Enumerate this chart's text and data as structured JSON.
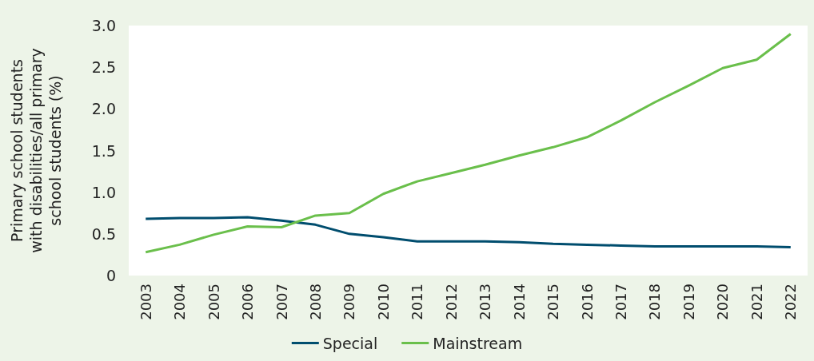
{
  "chart_data": {
    "type": "line",
    "ylabel": "Primary school students\nwith disabilities/all primary\nschool students (%)",
    "categories": [
      "2003",
      "2004",
      "2005",
      "2006",
      "2007",
      "2008",
      "2009",
      "2010",
      "2011",
      "2012",
      "2013",
      "2014",
      "2015",
      "2016",
      "2017",
      "2018",
      "2019",
      "2020",
      "2021",
      "2022"
    ],
    "series": [
      {
        "name": "Special",
        "color": "#004d6e",
        "values": [
          0.68,
          0.69,
          0.69,
          0.7,
          0.66,
          0.61,
          0.5,
          0.46,
          0.41,
          0.41,
          0.41,
          0.4,
          0.38,
          0.37,
          0.36,
          0.35,
          0.35,
          0.35,
          0.35,
          0.34
        ]
      },
      {
        "name": "Mainstream",
        "color": "#6abf4b",
        "values": [
          0.28,
          0.37,
          0.49,
          0.59,
          0.58,
          0.72,
          0.75,
          0.98,
          1.13,
          1.23,
          1.33,
          1.44,
          1.54,
          1.66,
          1.86,
          2.08,
          2.28,
          2.49,
          2.59,
          2.9
        ]
      }
    ],
    "ylim": [
      0,
      3
    ],
    "yticks": [
      {
        "value": 0,
        "label": "0"
      },
      {
        "value": 0.5,
        "label": "0.5"
      },
      {
        "value": 1,
        "label": "1.0"
      },
      {
        "value": 1.5,
        "label": "1.5"
      },
      {
        "value": 2,
        "label": "2.0"
      },
      {
        "value": 2.5,
        "label": "2.5"
      },
      {
        "value": 3,
        "label": "3.0"
      }
    ],
    "grid": false,
    "legend": "bottom",
    "marker": "none",
    "line_style": "solid"
  }
}
